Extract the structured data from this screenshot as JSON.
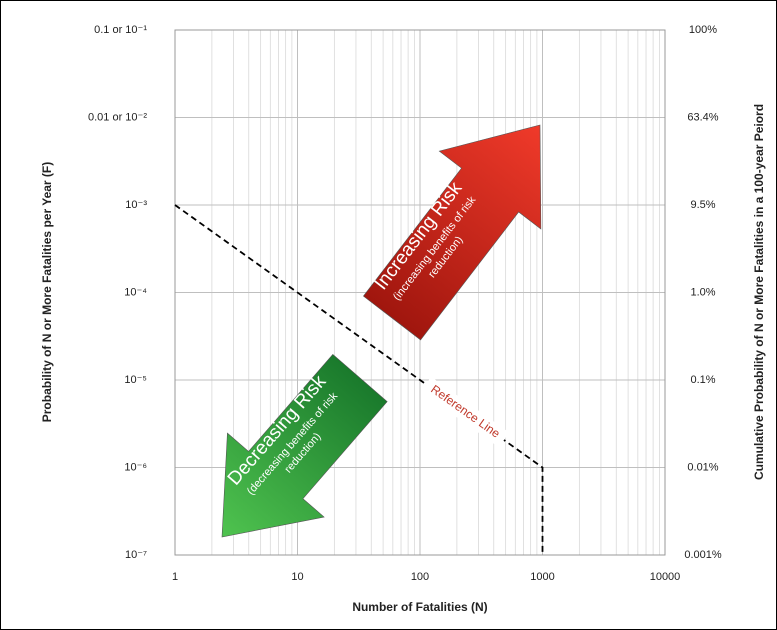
{
  "chart_data": {
    "type": "line",
    "x_label": "Number of Fatalities (N)",
    "y_label": "Probability of N or More Fatalities per Year (F)",
    "y2_label": "Cumulative Probability of N or More Fatalities in a 100-year Peiord",
    "xscale": "log",
    "yscale": "log",
    "grid": true,
    "minor_grid": true,
    "xlim": [
      1,
      10000
    ],
    "xticks": [
      1,
      10,
      100,
      1000,
      10000
    ],
    "ylim": [
      1e-07,
      0.1
    ],
    "yticks": [
      {
        "value": 1e-07,
        "label": "10⁻⁷"
      },
      {
        "value": 1e-06,
        "label": "10⁻⁶"
      },
      {
        "value": 1e-05,
        "label": "10⁻⁵"
      },
      {
        "value": 0.0001,
        "label": "10⁻⁴"
      },
      {
        "value": 0.001,
        "label": "10⁻³"
      },
      {
        "value": 0.01,
        "label": "0.01 or 10⁻²"
      },
      {
        "value": 0.1,
        "label": "0.1 or 10⁻¹"
      }
    ],
    "y2_labels": [
      "0.001%",
      "0.01%",
      "0.1%",
      "1.0%",
      "9.5%",
      "63.4%",
      "100%"
    ],
    "series": [
      {
        "color": "#000000",
        "dash": true,
        "x": [
          1,
          1000,
          1000
        ],
        "values": [
          0.001,
          1e-06,
          1e-07
        ]
      }
    ],
    "annotations": {
      "reference": "Reference Line",
      "increasing": "Increasing Risk",
      "increasing_sub1": "(increasing benefits of risk",
      "increasing_sub2": "reduction)",
      "decreasing": "Decreasing Risk",
      "decreasing_sub1": "(decreasing benefits of risk",
      "decreasing_sub2": "reduction)"
    }
  }
}
